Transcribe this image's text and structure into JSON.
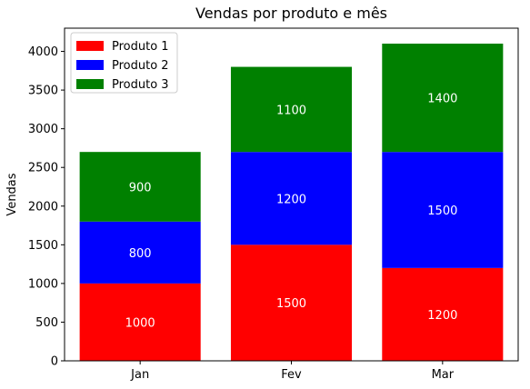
{
  "chart_data": {
    "type": "bar",
    "stacked": true,
    "title": "Vendas por produto e mês",
    "xlabel": "",
    "ylabel": "Vendas",
    "categories": [
      "Jan",
      "Fev",
      "Mar"
    ],
    "series": [
      {
        "name": "Produto 1",
        "color": "#ff0000",
        "values": [
          1000,
          1500,
          1200
        ]
      },
      {
        "name": "Produto 2",
        "color": "#0000ff",
        "values": [
          800,
          1200,
          1500
        ]
      },
      {
        "name": "Produto 3",
        "color": "#008000",
        "values": [
          900,
          1100,
          1400
        ]
      }
    ],
    "ylim": [
      0,
      4300
    ],
    "yticks": [
      0,
      500,
      1000,
      1500,
      2000,
      2500,
      3000,
      3500,
      4000
    ],
    "data_label_color": "#ffffff",
    "grid": false,
    "legend": {
      "placement": "upper-left"
    }
  }
}
